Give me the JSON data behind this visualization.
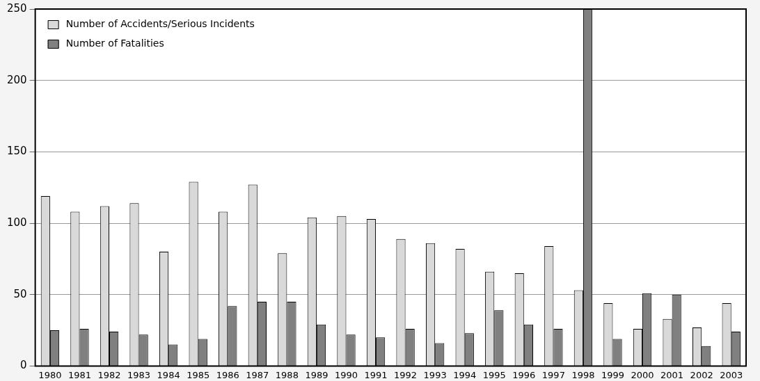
{
  "chart_data": {
    "type": "bar",
    "categories": [
      "1980",
      "1981",
      "1982",
      "1983",
      "1984",
      "1985",
      "1986",
      "1987",
      "1988",
      "1989",
      "1990",
      "1991",
      "1992",
      "1993",
      "1994",
      "1995",
      "1996",
      "1997",
      "1998",
      "1999",
      "2000",
      "2001",
      "2002",
      "2003"
    ],
    "series": [
      {
        "name": "Number of Accidents/Serious Incidents",
        "color": "#d9d9d9",
        "values": [
          119,
          108,
          112,
          114,
          80,
          129,
          108,
          127,
          79,
          104,
          105,
          103,
          89,
          86,
          82,
          66,
          65,
          84,
          53,
          44,
          26,
          33,
          27,
          44
        ]
      },
      {
        "name": "Number of Fatalities",
        "color": "#808080",
        "values": [
          25,
          26,
          24,
          22,
          15,
          19,
          42,
          45,
          45,
          29,
          22,
          20,
          26,
          16,
          23,
          39,
          29,
          26,
          250,
          19,
          51,
          50,
          14,
          24
        ]
      }
    ],
    "ylim": [
      0,
      250
    ],
    "yticks": [
      0,
      50,
      100,
      150,
      200,
      250
    ],
    "grid": "y",
    "legend": "top left"
  }
}
